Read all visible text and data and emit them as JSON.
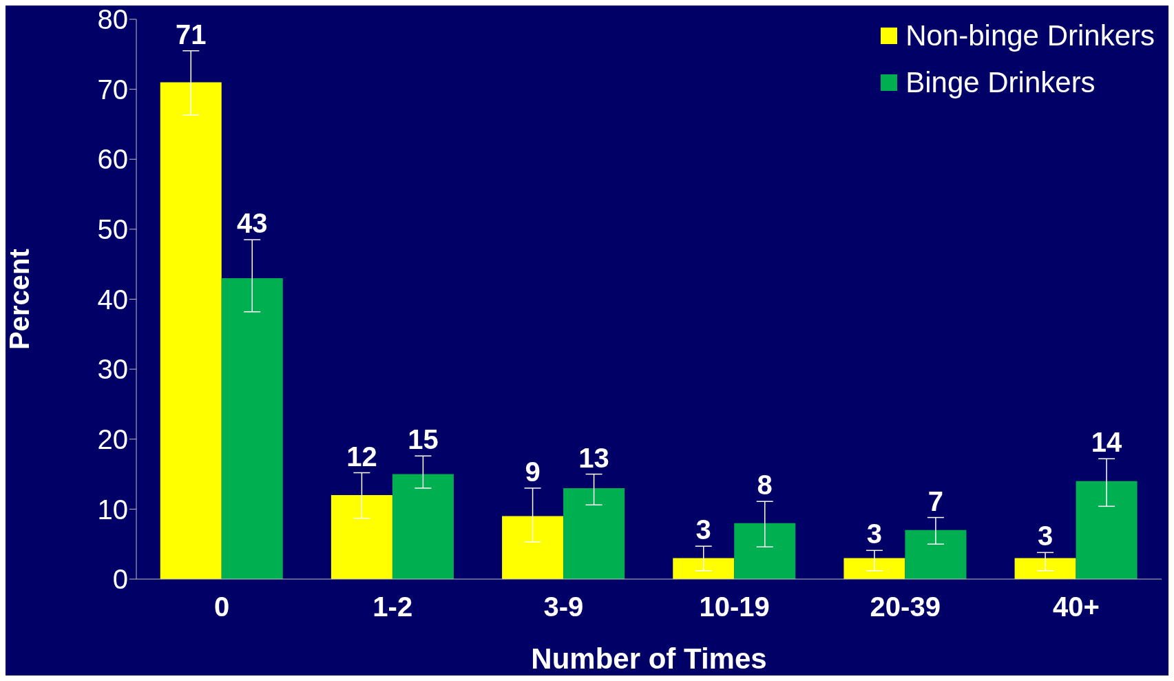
{
  "chart_data": {
    "type": "bar",
    "xlabel": "Number of Times",
    "ylabel": "Percent",
    "categories": [
      "0",
      "1-2",
      "3-9",
      "10-19",
      "20-39",
      "40+"
    ],
    "series": [
      {
        "name": "Non-binge Drinkers",
        "color": "#ffff00",
        "values": [
          71,
          12,
          9,
          3,
          3,
          3
        ],
        "errors": [
          [
            66.3,
            75.5
          ],
          [
            8.7,
            15.2
          ],
          [
            5.3,
            13.0
          ],
          [
            1.2,
            4.7
          ],
          [
            1.2,
            4.1
          ],
          [
            1.2,
            3.8
          ]
        ]
      },
      {
        "name": "Binge Drinkers",
        "color": "#00b050",
        "values": [
          43,
          15,
          13,
          8,
          7,
          14
        ],
        "errors": [
          [
            38.2,
            48.5
          ],
          [
            13.0,
            17.6
          ],
          [
            10.6,
            15.0
          ],
          [
            4.6,
            11.1
          ],
          [
            5.0,
            8.8
          ],
          [
            10.4,
            17.2
          ]
        ]
      }
    ],
    "ylim": [
      0,
      80
    ],
    "yticks": [
      0,
      10,
      20,
      30,
      40,
      50,
      60,
      70,
      80
    ],
    "grid": false,
    "legend": "top right",
    "data_labels": true
  }
}
